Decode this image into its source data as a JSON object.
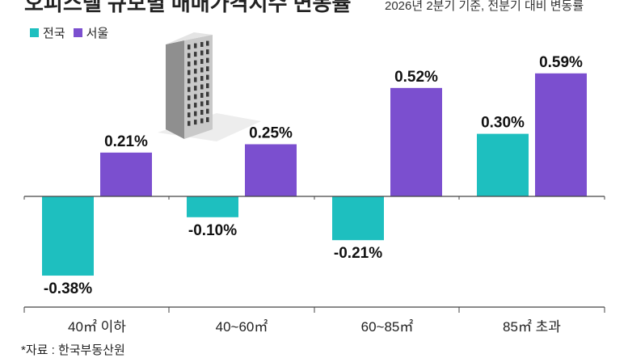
{
  "header": {
    "title": "오피스텔 규모별 매매가격지수 변동률",
    "subtitle": "2026년 2분기 기준, 전분기 대비 변동률"
  },
  "colors": {
    "nationwide": "#1ebfbf",
    "seoul": "#7b4fcf",
    "axis": "#444444",
    "building_light": "#c8c8c8",
    "building_dark": "#8d8d8d",
    "window": "#3a3a3a"
  },
  "illustration": {
    "icon": "office-building-icon"
  },
  "source": "*자료 : 한국부동산원",
  "chart_data": {
    "type": "bar",
    "categories": [
      "40㎡ 이하",
      "40~60㎡",
      "60~85㎡",
      "85㎡ 초과"
    ],
    "series": [
      {
        "name": "전국",
        "values": [
          -0.38,
          -0.1,
          -0.21,
          0.3
        ],
        "labels": [
          "-0.38%",
          "-0.10%",
          "-0.21%",
          "0.30%"
        ]
      },
      {
        "name": "서울",
        "values": [
          0.21,
          0.25,
          0.52,
          0.59
        ],
        "labels": [
          "0.21%",
          "0.25%",
          "0.52%",
          "0.59%"
        ]
      }
    ],
    "ylim": [
      -0.45,
      0.65
    ],
    "grid": false,
    "legend_position": "top-left"
  }
}
